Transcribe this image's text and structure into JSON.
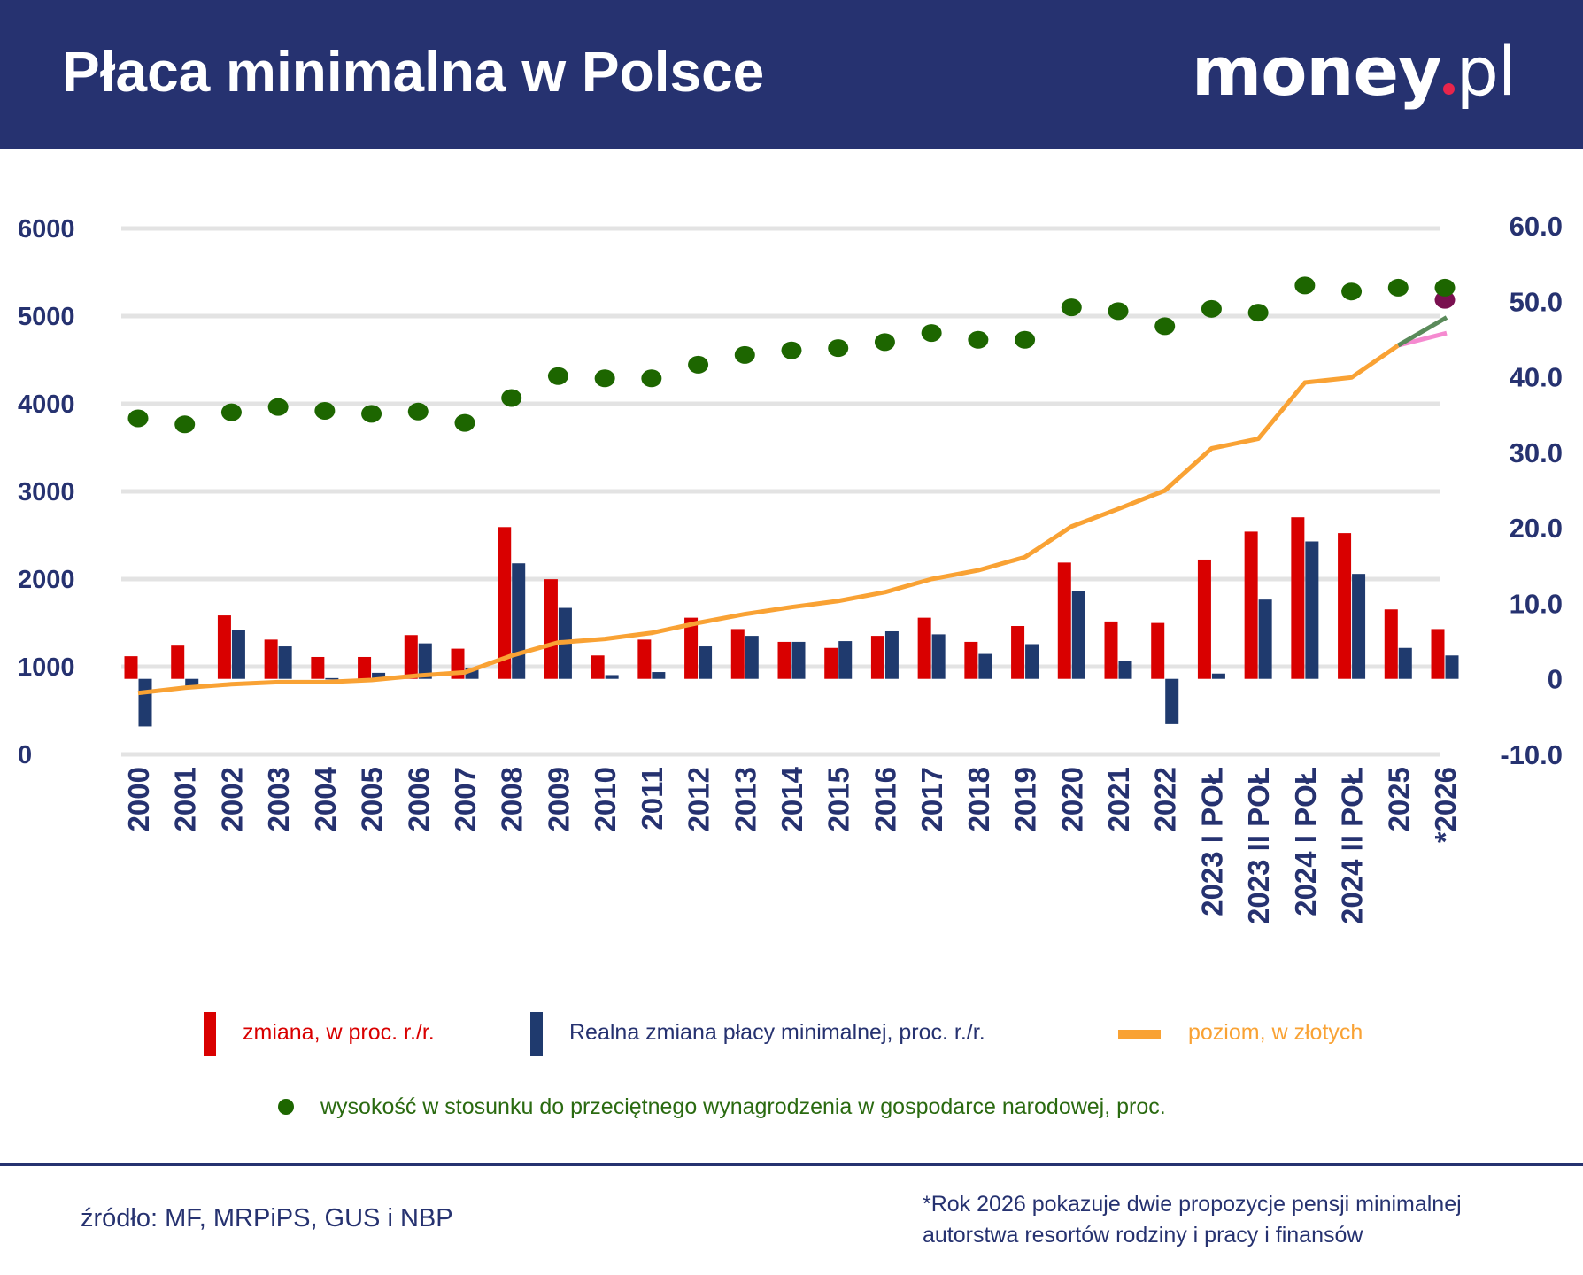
{
  "header": {
    "title": "Płaca minimalna w Polsce",
    "logo_text": "money.pl",
    "logo_main": "money",
    "logo_suffix": "pl"
  },
  "colors": {
    "header_bg": "#263270",
    "nominal": "#d90000",
    "real": "#1f3a6e",
    "level": "#f9a234",
    "ratio": "#1d6600",
    "proposal_mrpips": "#5a8a5a",
    "proposal_mf": "#f58ad0",
    "ratio_alt": "#7a1050"
  },
  "chart_data": {
    "type": "bar+line+scatter",
    "categories": [
      "2000",
      "2001",
      "2002",
      "2003",
      "2004",
      "2005",
      "2006",
      "2007",
      "2008",
      "2009",
      "2010",
      "2011",
      "2012",
      "2013",
      "2014",
      "2015",
      "2016",
      "2017",
      "2018",
      "2019",
      "2020",
      "2021",
      "2022",
      "2023 I POŁ",
      "2023 II POŁ",
      "2024 I POŁ",
      "2024 II POŁ",
      "2025",
      "*2026"
    ],
    "left_axis": {
      "ylim": [
        0,
        6000
      ],
      "ticks": [
        "0",
        "1000",
        "2000",
        "3000",
        "4000",
        "5000",
        "6000"
      ]
    },
    "right_axis": {
      "ylim": [
        -10,
        60
      ],
      "ticks": [
        "-10.0",
        "0",
        "10.0",
        "20.0",
        "30.0",
        "40.0",
        "50.0",
        "60.0"
      ]
    },
    "grid": true,
    "legend_placement": "bottom",
    "series": [
      {
        "name": "zmiana, w proc. r./r.",
        "kind": "bar",
        "axis": "right",
        "values": [
          3.0,
          4.4,
          8.4,
          5.2,
          2.9,
          2.9,
          5.8,
          4.0,
          20.1,
          13.2,
          3.1,
          5.2,
          8.1,
          6.6,
          4.9,
          4.1,
          5.7,
          8.1,
          4.9,
          7.0,
          15.4,
          7.6,
          7.4,
          15.8,
          19.5,
          21.4,
          19.3,
          9.2,
          6.6
        ]
      },
      {
        "name": "Realna zmiana płacy minimalnej, proc. r./r.",
        "kind": "bar",
        "axis": "right",
        "values": [
          -6.3,
          -1.0,
          6.5,
          4.3,
          0.1,
          0.8,
          4.7,
          1.5,
          15.3,
          9.4,
          0.5,
          0.9,
          4.3,
          5.7,
          4.9,
          5.0,
          6.3,
          5.9,
          3.3,
          4.6,
          11.6,
          2.4,
          -6.0,
          0.7,
          10.5,
          18.2,
          13.9,
          4.1,
          3.1
        ]
      },
      {
        "name": "poziom, w złotych",
        "kind": "line",
        "axis": "left",
        "values": [
          700,
          760,
          800,
          824,
          824,
          849,
          899,
          936,
          1126,
          1276,
          1317,
          1386,
          1500,
          1600,
          1680,
          1750,
          1850,
          2000,
          2100,
          2250,
          2600,
          2800,
          3010,
          3490,
          3600,
          4242,
          4300,
          4666,
          null
        ]
      },
      {
        "name": "wysokość w stosunku do przeciętnego wynagrodzenia w gospodarce narodowej, proc.",
        "kind": "scatter",
        "axis": "right",
        "values": [
          34.5,
          33.7,
          35.3,
          36.0,
          35.5,
          35.1,
          35.4,
          33.9,
          37.2,
          40.1,
          39.8,
          39.8,
          41.6,
          42.9,
          43.5,
          43.8,
          44.6,
          45.8,
          44.9,
          44.9,
          49.2,
          48.7,
          46.7,
          49.0,
          48.5,
          52.1,
          51.3,
          51.8,
          51.8
        ]
      }
    ],
    "proposals_2026": {
      "level_high": 4985,
      "level_low": 4806,
      "ratio_alt": 50.2
    }
  },
  "legend": {
    "nominal": "zmiana, w proc. r./r.",
    "real": "Realna zmiana płacy minimalnej, proc. r./r.",
    "level": "poziom, w złotych",
    "ratio": "wysokość w stosunku do przeciętnego wynagrodzenia w gospodarce narodowej, proc."
  },
  "footer": {
    "source": "źródło: MF, MRPiPS, GUS i NBP",
    "note_line1": "*Rok 2026 pokazuje dwie propozycje pensji minimalnej",
    "note_line2": "autorstwa resortów rodziny i pracy i finansów"
  }
}
